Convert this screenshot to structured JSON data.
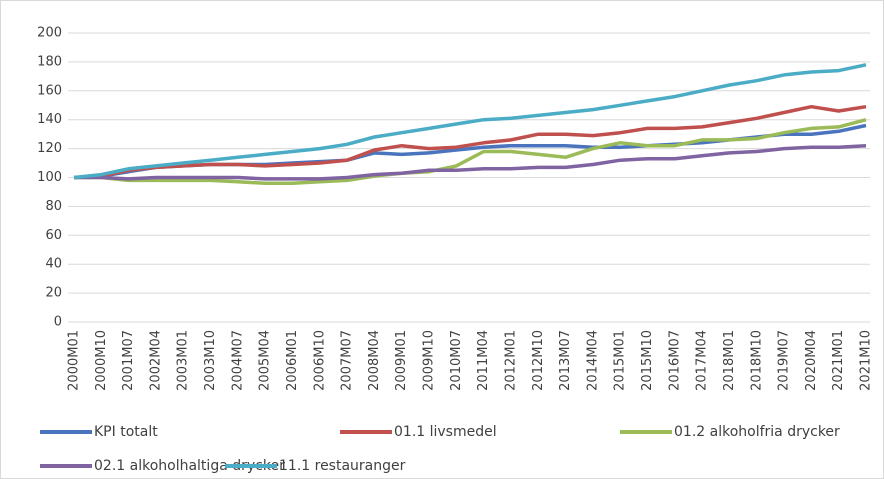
{
  "chart_data": {
    "type": "line",
    "categories": [
      "2000M01",
      "2000M10",
      "2001M07",
      "2002M04",
      "2003M01",
      "2003M10",
      "2004M07",
      "2005M04",
      "2006M01",
      "2006M10",
      "2007M07",
      "2008M04",
      "2009M01",
      "2009M10",
      "2010M07",
      "2011M04",
      "2012M01",
      "2012M10",
      "2013M07",
      "2014M04",
      "2015M01",
      "2015M10",
      "2016M07",
      "2017M04",
      "2018M01",
      "2018M10",
      "2019M07",
      "2020M04",
      "2021M01",
      "2021M10"
    ],
    "series": [
      {
        "name": "KPI totalt",
        "color": "#4a74bd",
        "values": [
          100,
          101,
          104,
          107,
          108,
          109,
          109,
          109,
          110,
          111,
          112,
          117,
          116,
          117,
          119,
          121,
          122,
          122,
          122,
          121,
          121,
          122,
          123,
          124,
          126,
          128,
          130,
          130,
          132,
          136
        ]
      },
      {
        "name": "01.1 livsmedel",
        "color": "#c0504d",
        "values": [
          100,
          101,
          105,
          107,
          108,
          109,
          109,
          108,
          109,
          110,
          112,
          119,
          122,
          120,
          121,
          124,
          126,
          130,
          130,
          129,
          131,
          134,
          134,
          135,
          138,
          141,
          145,
          149,
          146,
          149
        ]
      },
      {
        "name": "01.2 alkoholfria drycker",
        "color": "#9bbb59",
        "values": [
          100,
          100,
          98,
          98,
          98,
          98,
          97,
          96,
          96,
          97,
          98,
          101,
          103,
          104,
          108,
          118,
          118,
          116,
          114,
          120,
          124,
          122,
          122,
          126,
          126,
          127,
          131,
          134,
          135,
          140
        ]
      },
      {
        "name": "02.1 alkoholhaltiga drycker",
        "color": "#8064a2",
        "values": [
          100,
          100,
          99,
          100,
          100,
          100,
          100,
          99,
          99,
          99,
          100,
          102,
          103,
          105,
          105,
          106,
          106,
          107,
          107,
          109,
          112,
          113,
          113,
          115,
          117,
          118,
          120,
          121,
          121,
          122
        ]
      },
      {
        "name": "11.1 restauranger",
        "color": "#4bacc6",
        "values": [
          100,
          102,
          106,
          108,
          110,
          112,
          114,
          116,
          118,
          120,
          123,
          128,
          131,
          134,
          137,
          140,
          141,
          143,
          145,
          147,
          150,
          153,
          156,
          160,
          164,
          167,
          171,
          173,
          174,
          178
        ]
      }
    ],
    "ylim": [
      0,
      200
    ],
    "yticks": [
      0,
      20,
      40,
      60,
      80,
      100,
      120,
      140,
      160,
      180,
      200
    ],
    "grid": true
  }
}
